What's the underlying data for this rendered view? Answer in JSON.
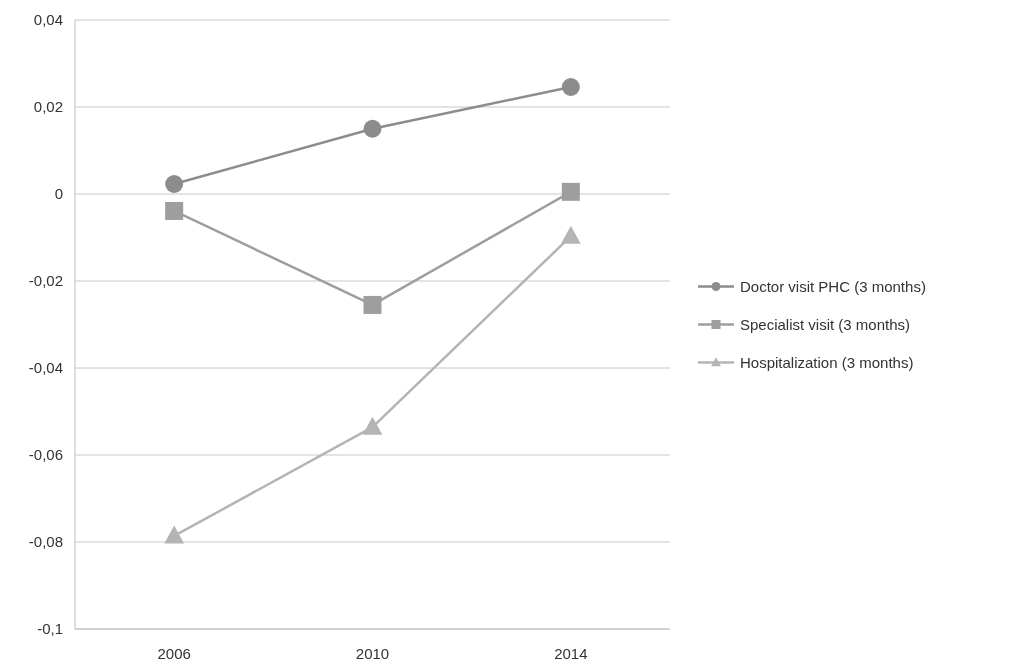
{
  "chart_data": {
    "type": "line",
    "categories": [
      "2006",
      "2010",
      "2014"
    ],
    "series": [
      {
        "name": "Doctor visit PHC (3 months)",
        "color": "#8c8c8c",
        "marker": "circle",
        "values": [
          0.0023,
          0.015,
          0.0246
        ]
      },
      {
        "name": "Specialist visit (3 months)",
        "color": "#9e9e9e",
        "marker": "square",
        "values": [
          -0.0039,
          -0.0255,
          0.0005
        ]
      },
      {
        "name": "Hospitalization (3 months)",
        "color": "#b4b4b4",
        "marker": "triangle",
        "values": [
          -0.0786,
          -0.0536,
          -0.0097
        ]
      }
    ],
    "ylim": [
      -0.1,
      0.04
    ],
    "yticks": [
      {
        "value": -0.1,
        "label": "-0,1"
      },
      {
        "value": -0.08,
        "label": "-0,08"
      },
      {
        "value": -0.06,
        "label": "-0,06"
      },
      {
        "value": -0.04,
        "label": "-0,04"
      },
      {
        "value": -0.02,
        "label": "-0,02"
      },
      {
        "value": 0,
        "label": "0"
      },
      {
        "value": 0.02,
        "label": "0,02"
      },
      {
        "value": 0.04,
        "label": "0,04"
      }
    ],
    "grid": "y",
    "legend": "right",
    "line_style": "solid"
  }
}
